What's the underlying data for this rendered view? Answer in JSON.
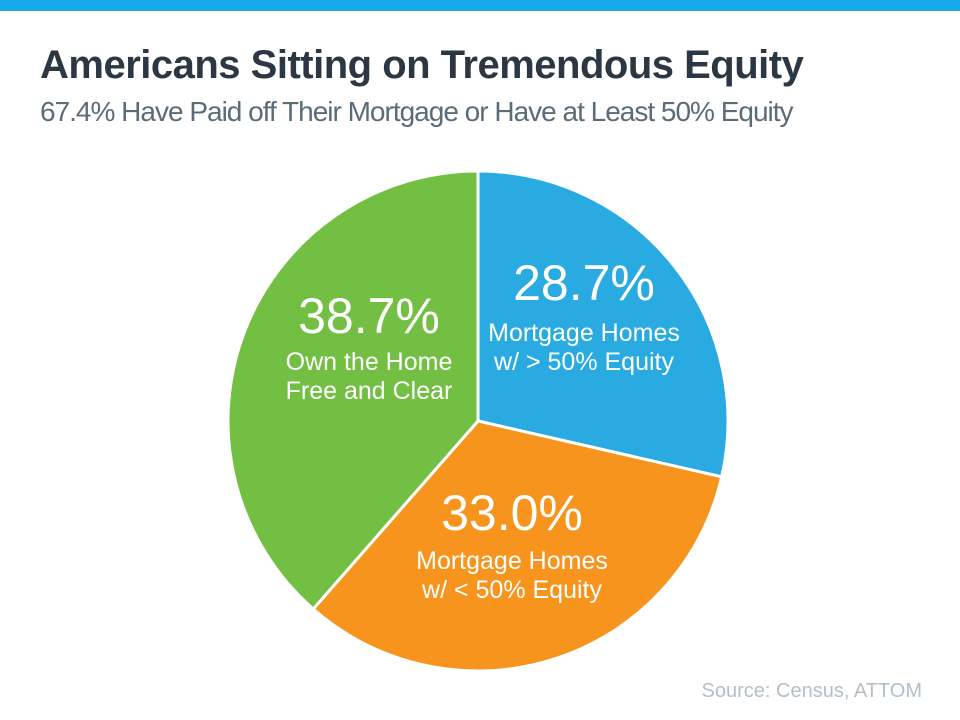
{
  "accent_bar_color": "#17A9EA",
  "header": {
    "title": "Americans Sitting on Tremendous Equity",
    "subtitle": "67.4% Have Paid off Their Mortgage or Have at Least 50% Equity",
    "title_color": "#2B3742",
    "subtitle_color": "#5C6C76"
  },
  "source": {
    "text": "Source: Census, ATTOM",
    "color": "#B4BFC7"
  },
  "chart_data": {
    "type": "pie",
    "title": "Americans Sitting on Tremendous Equity",
    "subtitle": "67.4% Have Paid off Their Mortgage or Have at Least 50% Equity",
    "start_angle_deg": 0,
    "direction": "clockwise",
    "legend_position": "none",
    "labels_inside": true,
    "label_color": "#FFFFFF",
    "separator_color": "#FFFFFF",
    "slices": [
      {
        "name": "Mortgage Homes w/ > 50% Equity",
        "value": 28.7,
        "pct_label": "28.7%",
        "label_line1": "Mortgage Homes",
        "label_line2": "w/ > 50% Equity",
        "color": "#29ABE2"
      },
      {
        "name": "Mortgage Homes w/ < 50% Equity",
        "value": 33.0,
        "pct_label": "33.0%",
        "label_line1": "Mortgage Homes",
        "label_line2": "w/ < 50% Equity",
        "color": "#F7941D"
      },
      {
        "name": "Own the Home Free and Clear",
        "value": 38.7,
        "pct_label": "38.7%",
        "label_line1": "Own the Home",
        "label_line2": "Free and Clear",
        "color": "#72BF44"
      }
    ]
  }
}
